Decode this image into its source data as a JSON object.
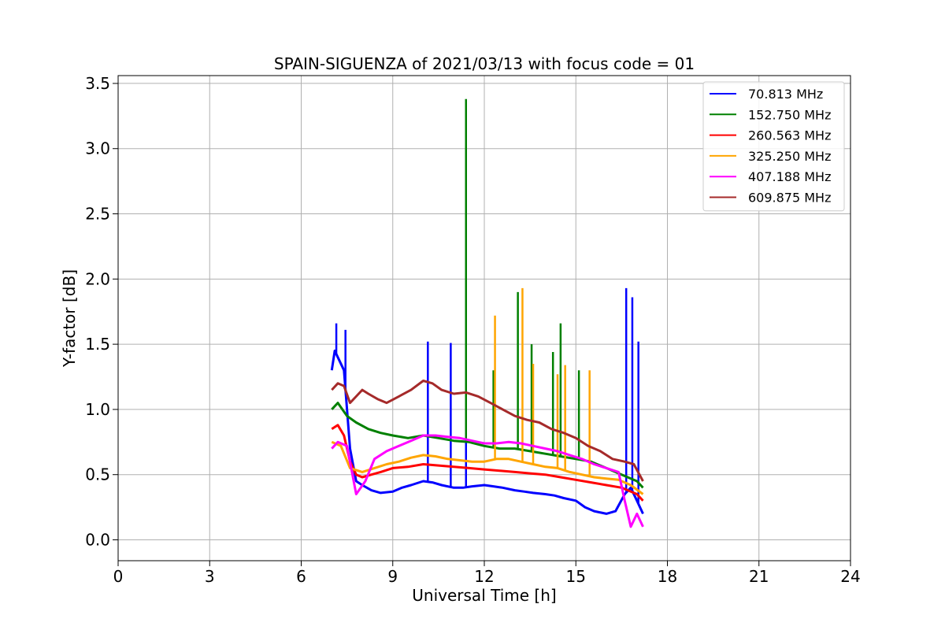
{
  "chart_data": {
    "type": "line",
    "title": "SPAIN-SIGUENZA of 2021/03/13 with focus code = 01",
    "xlabel": "Universal Time [h]",
    "ylabel": "Y-factor [dB]",
    "xlim": [
      0,
      24
    ],
    "ylim": [
      -0.16,
      3.56
    ],
    "xticks": [
      0,
      3,
      6,
      9,
      12,
      15,
      18,
      21,
      24
    ],
    "xtick_labels": [
      "0",
      "3",
      "6",
      "9",
      "12",
      "15",
      "18",
      "21",
      "24"
    ],
    "yticks": [
      0.0,
      0.5,
      1.0,
      1.5,
      2.0,
      2.5,
      3.0,
      3.5
    ],
    "ytick_labels": [
      "0.0",
      "0.5",
      "1.0",
      "1.5",
      "2.0",
      "2.5",
      "3.0",
      "3.5"
    ],
    "grid": true,
    "legend_position": "top-right",
    "series": [
      {
        "name": " 70.813 MHz",
        "color": "#0000ff",
        "x": [
          7.0,
          7.1,
          7.2,
          7.4,
          7.6,
          7.8,
          8.0,
          8.3,
          8.6,
          9.0,
          9.3,
          9.6,
          10.0,
          10.3,
          10.6,
          11.0,
          11.3,
          11.6,
          12.0,
          12.3,
          12.6,
          13.0,
          13.3,
          13.6,
          14.0,
          14.3,
          14.6,
          15.0,
          15.3,
          15.6,
          16.0,
          16.3,
          16.6,
          16.8,
          17.0,
          17.2
        ],
        "y": [
          1.3,
          1.45,
          1.4,
          1.3,
          0.7,
          0.45,
          0.42,
          0.38,
          0.36,
          0.37,
          0.4,
          0.42,
          0.45,
          0.44,
          0.42,
          0.4,
          0.4,
          0.41,
          0.42,
          0.41,
          0.4,
          0.38,
          0.37,
          0.36,
          0.35,
          0.34,
          0.32,
          0.3,
          0.25,
          0.22,
          0.2,
          0.22,
          0.35,
          0.4,
          0.3,
          0.2
        ],
        "spikes": [
          [
            7.15,
            1.66
          ],
          [
            7.45,
            1.61
          ],
          [
            10.15,
            1.52
          ],
          [
            10.9,
            1.51
          ],
          [
            11.4,
            1.4
          ],
          [
            16.65,
            1.93
          ],
          [
            16.85,
            1.86
          ],
          [
            17.05,
            1.52
          ]
        ]
      },
      {
        "name": "152.750 MHz",
        "color": "#008000",
        "x": [
          7.0,
          7.2,
          7.5,
          7.8,
          8.2,
          8.6,
          9.0,
          9.5,
          10.0,
          10.5,
          11.0,
          11.5,
          12.0,
          12.5,
          13.0,
          13.5,
          14.0,
          14.5,
          15.0,
          15.5,
          16.0,
          16.5,
          17.0,
          17.2
        ],
        "y": [
          1.0,
          1.05,
          0.95,
          0.9,
          0.85,
          0.82,
          0.8,
          0.78,
          0.8,
          0.78,
          0.76,
          0.75,
          0.72,
          0.7,
          0.7,
          0.68,
          0.66,
          0.64,
          0.62,
          0.6,
          0.55,
          0.5,
          0.45,
          0.4
        ],
        "spikes": [
          [
            11.4,
            3.38
          ],
          [
            12.3,
            1.3
          ],
          [
            13.1,
            1.9
          ],
          [
            13.55,
            1.5
          ],
          [
            14.25,
            1.44
          ],
          [
            14.5,
            1.66
          ],
          [
            15.1,
            1.3
          ]
        ]
      },
      {
        "name": "260.563 MHz",
        "color": "#ff0000",
        "x": [
          7.0,
          7.2,
          7.4,
          7.6,
          7.8,
          8.0,
          8.3,
          8.6,
          9.0,
          9.5,
          10.0,
          10.5,
          11.0,
          11.5,
          12.0,
          12.5,
          13.0,
          13.5,
          14.0,
          14.5,
          15.0,
          15.5,
          16.0,
          16.5,
          17.0,
          17.2
        ],
        "y": [
          0.85,
          0.88,
          0.8,
          0.6,
          0.5,
          0.48,
          0.5,
          0.52,
          0.55,
          0.56,
          0.58,
          0.57,
          0.56,
          0.55,
          0.54,
          0.53,
          0.52,
          0.51,
          0.5,
          0.48,
          0.46,
          0.44,
          0.42,
          0.4,
          0.35,
          0.3
        ],
        "spikes": []
      },
      {
        "name": "325.250 MHz",
        "color": "#ffa500",
        "x": [
          7.0,
          7.3,
          7.6,
          8.0,
          8.4,
          8.8,
          9.2,
          9.6,
          10.0,
          10.4,
          10.8,
          11.2,
          11.6,
          12.0,
          12.4,
          12.8,
          13.2,
          13.6,
          14.0,
          14.4,
          14.8,
          15.2,
          15.6,
          16.0,
          16.4,
          16.8,
          17.2
        ],
        "y": [
          0.75,
          0.72,
          0.55,
          0.52,
          0.55,
          0.58,
          0.6,
          0.63,
          0.65,
          0.64,
          0.62,
          0.61,
          0.6,
          0.6,
          0.62,
          0.62,
          0.6,
          0.58,
          0.56,
          0.55,
          0.52,
          0.5,
          0.48,
          0.47,
          0.46,
          0.42,
          0.35
        ],
        "spikes": [
          [
            12.35,
            1.72
          ],
          [
            13.25,
            1.93
          ],
          [
            13.6,
            1.35
          ],
          [
            14.4,
            1.27
          ],
          [
            14.65,
            1.34
          ],
          [
            15.45,
            1.3
          ]
        ]
      },
      {
        "name": "407.188 MHz",
        "color": "#ff00ff",
        "x": [
          7.0,
          7.2,
          7.5,
          7.8,
          8.1,
          8.4,
          8.8,
          9.2,
          9.6,
          10.0,
          10.4,
          10.8,
          11.2,
          11.6,
          12.0,
          12.4,
          12.8,
          13.2,
          13.6,
          14.0,
          14.4,
          14.8,
          15.2,
          15.6,
          16.0,
          16.4,
          16.6,
          16.8,
          17.0,
          17.2
        ],
        "y": [
          0.7,
          0.75,
          0.72,
          0.35,
          0.45,
          0.62,
          0.68,
          0.72,
          0.76,
          0.8,
          0.8,
          0.79,
          0.78,
          0.76,
          0.74,
          0.74,
          0.75,
          0.74,
          0.72,
          0.7,
          0.68,
          0.65,
          0.62,
          0.58,
          0.55,
          0.52,
          0.3,
          0.1,
          0.2,
          0.1
        ],
        "spikes": []
      },
      {
        "name": "609.875 MHz",
        "color": "#a52a2a",
        "x": [
          7.0,
          7.2,
          7.4,
          7.6,
          7.8,
          8.0,
          8.2,
          8.5,
          8.8,
          9.2,
          9.6,
          10.0,
          10.3,
          10.6,
          11.0,
          11.4,
          11.8,
          12.2,
          12.6,
          13.0,
          13.4,
          13.8,
          14.2,
          14.6,
          15.0,
          15.4,
          15.8,
          16.2,
          16.6,
          16.9,
          17.2
        ],
        "y": [
          1.15,
          1.2,
          1.18,
          1.05,
          1.1,
          1.15,
          1.12,
          1.08,
          1.05,
          1.1,
          1.15,
          1.22,
          1.2,
          1.15,
          1.12,
          1.13,
          1.1,
          1.05,
          1.0,
          0.95,
          0.92,
          0.9,
          0.85,
          0.82,
          0.78,
          0.72,
          0.68,
          0.62,
          0.6,
          0.58,
          0.45
        ],
        "spikes": []
      }
    ]
  }
}
